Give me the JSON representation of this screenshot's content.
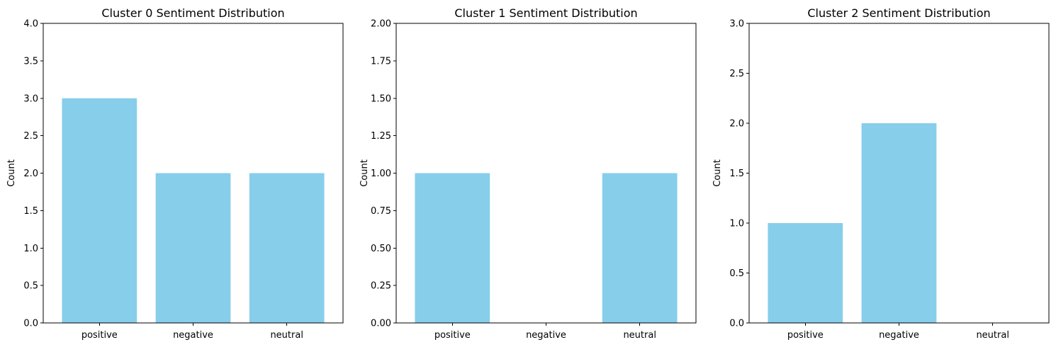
{
  "bar_color": "#87CEEB",
  "chart_data": [
    {
      "type": "bar",
      "title": "Cluster 0 Sentiment Distribution",
      "xlabel": "",
      "ylabel": "Count",
      "categories": [
        "positive",
        "negative",
        "neutral"
      ],
      "values": [
        3,
        2,
        2
      ],
      "ylim": [
        0,
        4
      ],
      "yticks": [
        "0.0",
        "0.5",
        "1.0",
        "1.5",
        "2.0",
        "2.5",
        "3.0",
        "3.5",
        "4.0"
      ],
      "grid": false,
      "legend": false
    },
    {
      "type": "bar",
      "title": "Cluster 1 Sentiment Distribution",
      "xlabel": "",
      "ylabel": "Count",
      "categories": [
        "positive",
        "negative",
        "neutral"
      ],
      "values": [
        1,
        0,
        1
      ],
      "ylim": [
        0,
        2
      ],
      "yticks": [
        "0.00",
        "0.25",
        "0.50",
        "0.75",
        "1.00",
        "1.25",
        "1.50",
        "1.75",
        "2.00"
      ],
      "grid": false,
      "legend": false
    },
    {
      "type": "bar",
      "title": "Cluster 2 Sentiment Distribution",
      "xlabel": "",
      "ylabel": "Count",
      "categories": [
        "positive",
        "negative",
        "neutral"
      ],
      "values": [
        1,
        2,
        0
      ],
      "ylim": [
        0,
        3
      ],
      "yticks": [
        "0.0",
        "0.5",
        "1.0",
        "1.5",
        "2.0",
        "2.5",
        "3.0"
      ],
      "grid": false,
      "legend": false
    }
  ]
}
